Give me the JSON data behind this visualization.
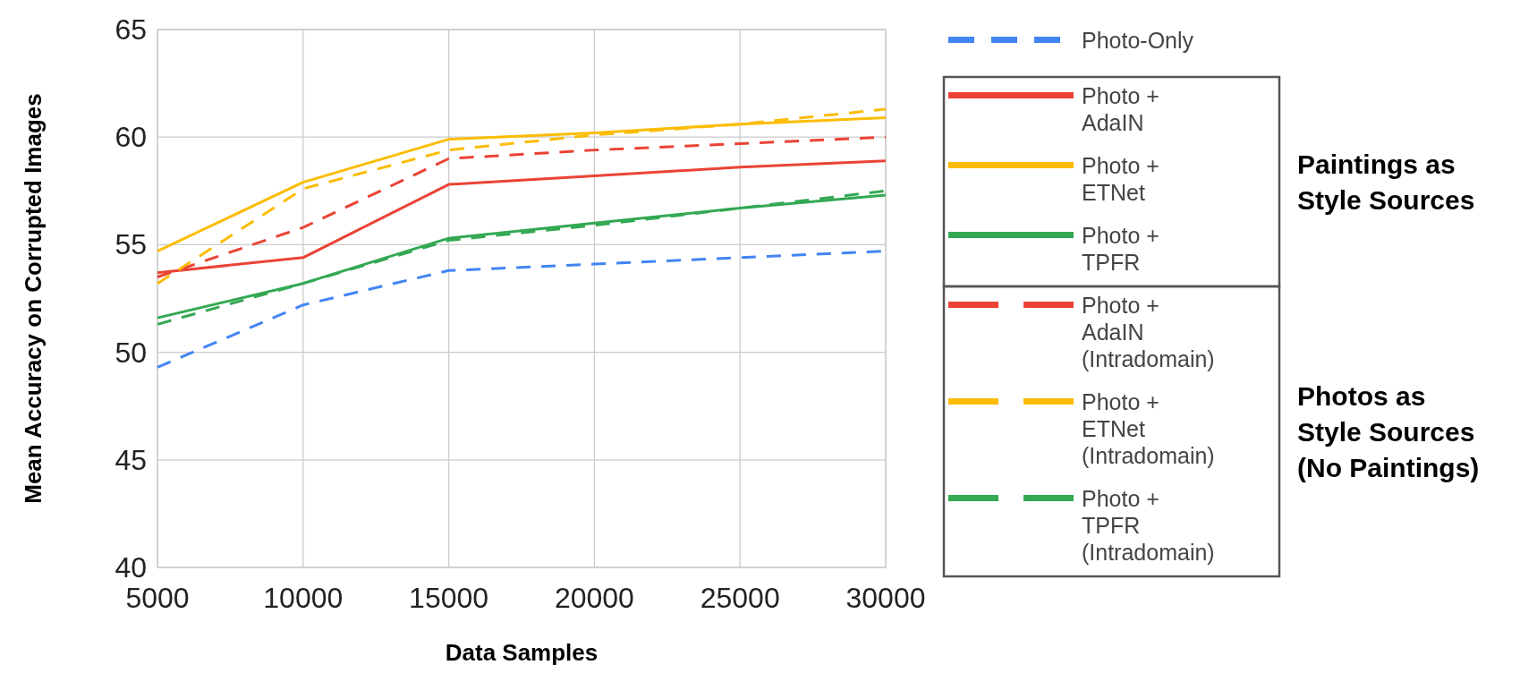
{
  "chart_data": {
    "type": "line",
    "xlabel": "Data Samples",
    "ylabel": "Mean Accuracy on Corrupted Images",
    "x": [
      5000,
      10000,
      15000,
      20000,
      25000,
      30000
    ],
    "xlim": [
      5000,
      30000
    ],
    "xticks": [
      5000,
      10000,
      15000,
      20000,
      25000,
      30000
    ],
    "ylim": [
      40,
      65
    ],
    "yticks": [
      40,
      45,
      50,
      55,
      60,
      65
    ],
    "grid": true,
    "legend": "right",
    "marker": "none",
    "series": [
      {
        "name": "Photo-Only",
        "color": "#4285f4",
        "line_style": "dashed",
        "values": [
          49.3,
          52.2,
          53.8,
          54.1,
          54.4,
          54.7
        ]
      },
      {
        "name": "Photo + AdaIN",
        "color": "#ea4335",
        "line_style": "solid",
        "values": [
          53.7,
          54.4,
          57.8,
          58.2,
          58.6,
          58.9
        ]
      },
      {
        "name": "Photo + ETNet",
        "color": "#fbbc04",
        "line_style": "solid",
        "values": [
          54.7,
          57.9,
          59.9,
          60.2,
          60.6,
          60.9
        ]
      },
      {
        "name": "Photo + TPFR",
        "color": "#34a853",
        "line_style": "solid",
        "values": [
          51.6,
          53.2,
          55.3,
          56.0,
          56.7,
          57.3
        ]
      },
      {
        "name": "Photo + AdaIN (Intradomain)",
        "color": "#ea4335",
        "line_style": "dashed",
        "values": [
          53.5,
          55.8,
          59.0,
          59.4,
          59.7,
          60.0
        ]
      },
      {
        "name": "Photo + ETNet (Intradomain)",
        "color": "#fbbc04",
        "line_style": "dashed",
        "values": [
          53.2,
          57.6,
          59.4,
          60.1,
          60.6,
          61.3
        ]
      },
      {
        "name": "Photo + TPFR (Intradomain)",
        "color": "#34a853",
        "line_style": "dashed",
        "values": [
          51.3,
          53.2,
          55.2,
          55.9,
          56.7,
          57.5
        ]
      }
    ],
    "annotations": [
      "Paintings as Style Sources",
      "Photos as Style Sources (No Paintings)"
    ]
  }
}
